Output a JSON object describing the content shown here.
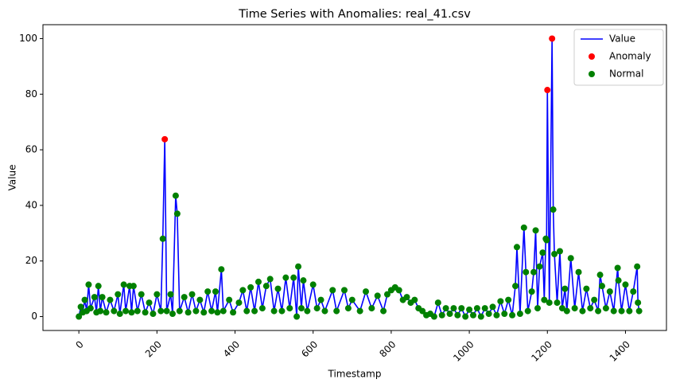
{
  "chart_data": {
    "type": "line-scatter",
    "title": "Time Series with Anomalies: real_41.csv",
    "x_label": "Timestamp",
    "y_label": "Value",
    "xlim": [
      -92,
      1505
    ],
    "ylim": [
      -5,
      105
    ],
    "xticks": [
      0,
      200,
      400,
      600,
      800,
      1000,
      1200,
      1400
    ],
    "yticks": [
      0,
      20,
      40,
      60,
      80,
      100
    ],
    "legend": "upper right",
    "series": [
      {
        "name": "Value",
        "kind": "line",
        "color": "#0000ff",
        "x": [
          0,
          5,
          10,
          15,
          20,
          25,
          30,
          40,
          45,
          50,
          55,
          60,
          70,
          80,
          90,
          100,
          105,
          115,
          120,
          130,
          135,
          140,
          150,
          160,
          170,
          180,
          190,
          200,
          210,
          215,
          220,
          225,
          235,
          240,
          248,
          252,
          258,
          270,
          280,
          290,
          300,
          310,
          320,
          330,
          340,
          350,
          355,
          365,
          370,
          385,
          395,
          410,
          420,
          430,
          440,
          450,
          460,
          470,
          480,
          490,
          500,
          510,
          520,
          530,
          540,
          550,
          558,
          562,
          570,
          575,
          585,
          600,
          610,
          620,
          630,
          650,
          660,
          680,
          690,
          700,
          720,
          735,
          750,
          765,
          780,
          790,
          800,
          810,
          820,
          830,
          840,
          850,
          860,
          870,
          880,
          890,
          900,
          910,
          920,
          930,
          940,
          950,
          960,
          970,
          980,
          990,
          1000,
          1010,
          1020,
          1030,
          1040,
          1050,
          1060,
          1070,
          1080,
          1090,
          1100,
          1110,
          1118,
          1122,
          1130,
          1140,
          1145,
          1150,
          1160,
          1165,
          1170,
          1175,
          1180,
          1188,
          1192,
          1196,
          1198,
          1200,
          1205,
          1212,
          1215,
          1218,
          1225,
          1232,
          1238,
          1245,
          1250,
          1260,
          1270,
          1280,
          1290,
          1300,
          1310,
          1320,
          1330,
          1335,
          1340,
          1350,
          1360,
          1370,
          1380,
          1382,
          1390,
          1400,
          1410,
          1420,
          1430,
          1432,
          1435
        ],
        "values": [
          0,
          3.5,
          1.5,
          6,
          2,
          11.5,
          3,
          7,
          1.5,
          11,
          2,
          7,
          1.5,
          6,
          2,
          8,
          1,
          11.5,
          2,
          11,
          1.5,
          11,
          2,
          8,
          1.5,
          5,
          1,
          8,
          2,
          28,
          63.8,
          2,
          8,
          1,
          43.5,
          37,
          2,
          7,
          1.5,
          8,
          2,
          6,
          1.5,
          9,
          2,
          9,
          1.5,
          17,
          2,
          6,
          1.5,
          5,
          9.5,
          2,
          10.5,
          2,
          12.5,
          3,
          11,
          13.5,
          2,
          10,
          2,
          14,
          3,
          14,
          0,
          18,
          3,
          13,
          2,
          11.5,
          3,
          6,
          2,
          9.5,
          2,
          9.5,
          3,
          6,
          2,
          9,
          3,
          7.5,
          2,
          8,
          9.5,
          10.5,
          9.5,
          6,
          7,
          5,
          6,
          3,
          2,
          0.5,
          1,
          0,
          5,
          0.5,
          3,
          1,
          3,
          0.5,
          3,
          0,
          2.5,
          0.5,
          3,
          0,
          3,
          1,
          3.5,
          0.5,
          5.5,
          1,
          6,
          0.5,
          11,
          25,
          1,
          32,
          16,
          2,
          9,
          16,
          31,
          3,
          18,
          23,
          6,
          28,
          27.5,
          81.5,
          5,
          100,
          38.5,
          22.5,
          5,
          23.5,
          3,
          10,
          2,
          21,
          3,
          16,
          2,
          10,
          3,
          6,
          2,
          15,
          11,
          3,
          9,
          2,
          17.5,
          13,
          2,
          11.5,
          2,
          9,
          18,
          5,
          2
        ]
      },
      {
        "name": "Anomaly",
        "kind": "scatter",
        "color": "#ff0000",
        "x": [
          220,
          1200,
          1212
        ],
        "values": [
          63.8,
          81.5,
          100
        ]
      },
      {
        "name": "Normal",
        "kind": "scatter",
        "color": "#008000",
        "x": [
          0,
          5,
          10,
          15,
          20,
          25,
          30,
          40,
          45,
          50,
          55,
          60,
          70,
          80,
          90,
          100,
          105,
          115,
          120,
          130,
          135,
          140,
          150,
          160,
          170,
          180,
          190,
          200,
          210,
          215,
          225,
          235,
          240,
          248,
          252,
          258,
          270,
          280,
          290,
          300,
          310,
          320,
          330,
          340,
          350,
          355,
          365,
          370,
          385,
          395,
          410,
          420,
          430,
          440,
          450,
          460,
          470,
          480,
          490,
          500,
          510,
          520,
          530,
          540,
          550,
          558,
          562,
          570,
          575,
          585,
          600,
          610,
          620,
          630,
          650,
          660,
          680,
          690,
          700,
          720,
          735,
          750,
          765,
          780,
          790,
          800,
          810,
          820,
          830,
          840,
          850,
          860,
          870,
          880,
          890,
          900,
          910,
          920,
          930,
          940,
          950,
          960,
          970,
          980,
          990,
          1000,
          1010,
          1020,
          1030,
          1040,
          1050,
          1060,
          1070,
          1080,
          1090,
          1100,
          1110,
          1118,
          1122,
          1130,
          1140,
          1145,
          1150,
          1160,
          1165,
          1170,
          1175,
          1180,
          1188,
          1192,
          1196,
          1198,
          1205,
          1215,
          1218,
          1225,
          1232,
          1238,
          1245,
          1250,
          1260,
          1270,
          1280,
          1290,
          1300,
          1310,
          1320,
          1330,
          1335,
          1340,
          1350,
          1360,
          1370,
          1380,
          1382,
          1390,
          1400,
          1410,
          1420,
          1430,
          1432,
          1435
        ],
        "values": [
          0,
          3.5,
          1.5,
          6,
          2,
          11.5,
          3,
          7,
          1.5,
          11,
          2,
          7,
          1.5,
          6,
          2,
          8,
          1,
          11.5,
          2,
          11,
          1.5,
          11,
          2,
          8,
          1.5,
          5,
          1,
          8,
          2,
          28,
          2,
          8,
          1,
          43.5,
          37,
          2,
          7,
          1.5,
          8,
          2,
          6,
          1.5,
          9,
          2,
          9,
          1.5,
          17,
          2,
          6,
          1.5,
          5,
          9.5,
          2,
          10.5,
          2,
          12.5,
          3,
          11,
          13.5,
          2,
          10,
          2,
          14,
          3,
          14,
          0,
          18,
          3,
          13,
          2,
          11.5,
          3,
          6,
          2,
          9.5,
          2,
          9.5,
          3,
          6,
          2,
          9,
          3,
          7.5,
          2,
          8,
          9.5,
          10.5,
          9.5,
          6,
          7,
          5,
          6,
          3,
          2,
          0.5,
          1,
          0,
          5,
          0.5,
          3,
          1,
          3,
          0.5,
          3,
          0,
          2.5,
          0.5,
          3,
          0,
          3,
          1,
          3.5,
          0.5,
          5.5,
          1,
          6,
          0.5,
          11,
          25,
          1,
          32,
          16,
          2,
          9,
          16,
          31,
          3,
          18,
          23,
          6,
          28,
          27.5,
          5,
          38.5,
          22.5,
          5,
          23.5,
          3,
          10,
          2,
          21,
          3,
          16,
          2,
          10,
          3,
          6,
          2,
          15,
          11,
          3,
          9,
          2,
          17.5,
          13,
          2,
          11.5,
          2,
          9,
          18,
          5,
          2
        ]
      }
    ]
  }
}
